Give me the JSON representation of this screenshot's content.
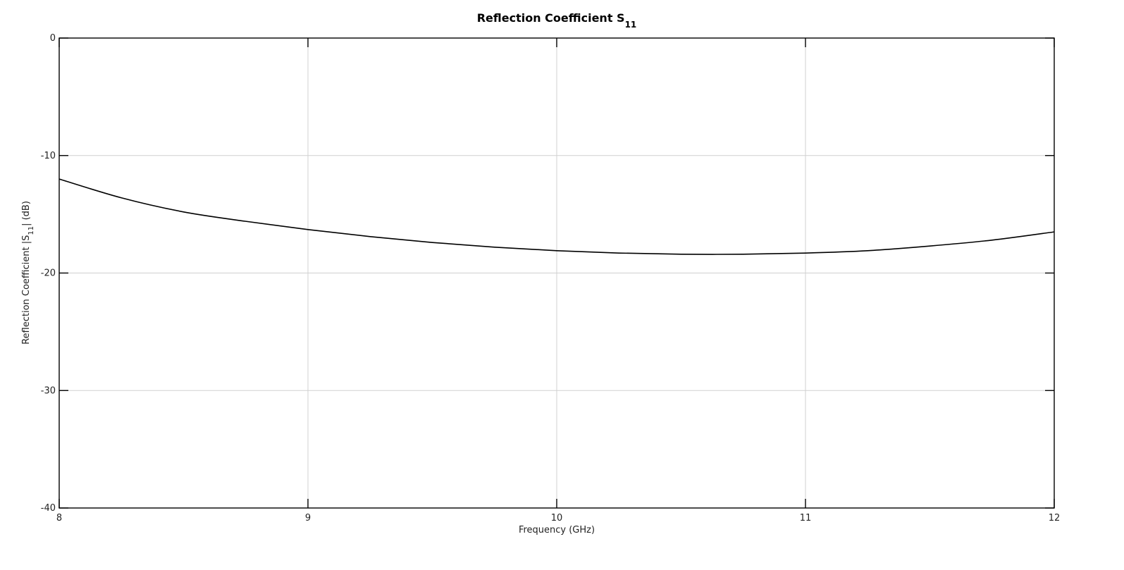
{
  "chart_data": {
    "type": "line",
    "title": "Reflection Coefficient S",
    "title_subscript": "11",
    "xlabel": "Frequency (GHz)",
    "ylabel_prefix": "Reflection Coefficient |S",
    "ylabel_subscript": "11",
    "ylabel_suffix": "| (dB)",
    "xlim": [
      8,
      12
    ],
    "ylim": [
      -40,
      0
    ],
    "xticks": [
      8,
      9,
      10,
      11,
      12
    ],
    "yticks": [
      0,
      -10,
      -20,
      -30,
      -40
    ],
    "grid": true,
    "series": [
      {
        "color": "#000000",
        "x": [
          8.0,
          8.25,
          8.5,
          8.75,
          9.0,
          9.25,
          9.5,
          9.75,
          10.0,
          10.25,
          10.5,
          10.75,
          11.0,
          11.25,
          11.5,
          11.75,
          12.0
        ],
        "y": [
          -12.0,
          -13.6,
          -14.8,
          -15.6,
          -16.3,
          -16.9,
          -17.4,
          -17.8,
          -18.1,
          -18.3,
          -18.4,
          -18.4,
          -18.3,
          -18.1,
          -17.7,
          -17.2,
          -16.5
        ]
      }
    ]
  }
}
